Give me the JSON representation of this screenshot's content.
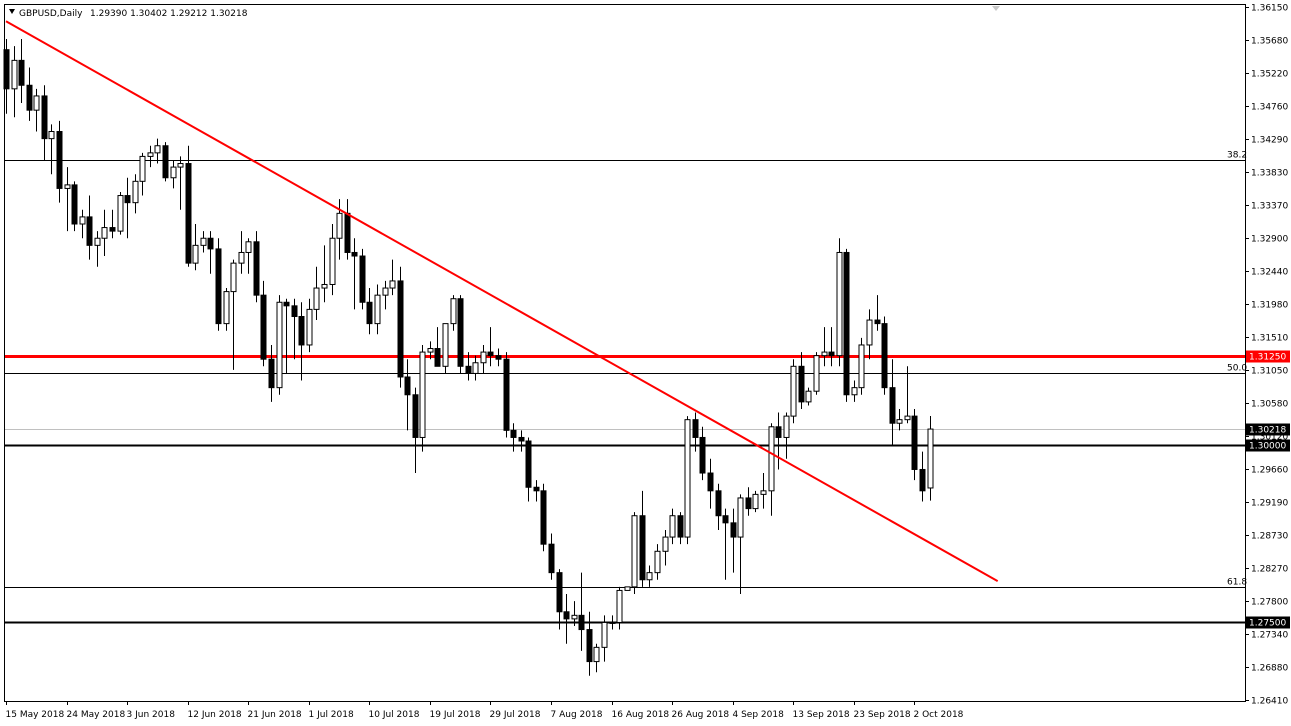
{
  "header": {
    "symbol": "GBPUSD,Daily",
    "ohlc": "1.29390 1.30402 1.29212 1.30218"
  },
  "chart_data": {
    "type": "candlestick",
    "title": "",
    "xlabel": "",
    "ylabel": "",
    "ylim": [
      1.2641,
      1.3615
    ],
    "grid": false,
    "y_ticks": [
      "1.36150",
      "1.35680",
      "1.35220",
      "1.34760",
      "1.34290",
      "1.33830",
      "1.33370",
      "1.32900",
      "1.32440",
      "1.31980",
      "1.31510",
      "1.31050",
      "1.30580",
      "1.30120",
      "1.29660",
      "1.29190",
      "1.28730",
      "1.28270",
      "1.27800",
      "1.27340",
      "1.26880",
      "1.26410"
    ],
    "x_ticks": [
      {
        "label": "15 May 2018",
        "bar": 0
      },
      {
        "label": "24 May 2018",
        "bar": 8
      },
      {
        "label": "3 Jun 2018",
        "bar": 16
      },
      {
        "label": "12 Jun 2018",
        "bar": 24
      },
      {
        "label": "21 Jun 2018",
        "bar": 32
      },
      {
        "label": "1 Jul 2018",
        "bar": 40
      },
      {
        "label": "10 Jul 2018",
        "bar": 48
      },
      {
        "label": "19 Jul 2018",
        "bar": 56
      },
      {
        "label": "29 Jul 2018",
        "bar": 64
      },
      {
        "label": "7 Aug 2018",
        "bar": 72
      },
      {
        "label": "16 Aug 2018",
        "bar": 80
      },
      {
        "label": "26 Aug 2018",
        "bar": 88
      },
      {
        "label": "4 Sep 2018",
        "bar": 96
      },
      {
        "label": "13 Sep 2018",
        "bar": 104
      },
      {
        "label": "23 Sep 2018",
        "bar": 112
      },
      {
        "label": "2 Oct 2018",
        "bar": 120
      }
    ],
    "candles": [
      [
        1.3555,
        1.357,
        1.3465,
        1.35
      ],
      [
        1.35,
        1.356,
        1.346,
        1.354
      ],
      [
        1.354,
        1.357,
        1.348,
        1.3505
      ],
      [
        1.3505,
        1.353,
        1.3455,
        1.347
      ],
      [
        1.347,
        1.35,
        1.344,
        1.349
      ],
      [
        1.349,
        1.3505,
        1.34,
        1.343
      ],
      [
        1.343,
        1.345,
        1.338,
        1.344
      ],
      [
        1.344,
        1.3455,
        1.334,
        1.336
      ],
      [
        1.336,
        1.339,
        1.33,
        1.3365
      ],
      [
        1.3365,
        1.337,
        1.33,
        1.331
      ],
      [
        1.331,
        1.333,
        1.329,
        1.332
      ],
      [
        1.332,
        1.335,
        1.326,
        1.328
      ],
      [
        1.328,
        1.33,
        1.325,
        1.329
      ],
      [
        1.329,
        1.333,
        1.3265,
        1.3305
      ],
      [
        1.3305,
        1.333,
        1.329,
        1.33
      ],
      [
        1.33,
        1.3355,
        1.3295,
        1.335
      ],
      [
        1.335,
        1.3375,
        1.329,
        1.334
      ],
      [
        1.334,
        1.338,
        1.3325,
        1.337
      ],
      [
        1.337,
        1.341,
        1.335,
        1.3405
      ],
      [
        1.3405,
        1.342,
        1.339,
        1.341
      ],
      [
        1.341,
        1.343,
        1.3395,
        1.342
      ],
      [
        1.342,
        1.3425,
        1.337,
        1.3375
      ],
      [
        1.3375,
        1.34,
        1.336,
        1.339
      ],
      [
        1.339,
        1.3405,
        1.333,
        1.3395
      ],
      [
        1.3395,
        1.342,
        1.325,
        1.3255
      ],
      [
        1.3255,
        1.331,
        1.3245,
        1.328
      ],
      [
        1.328,
        1.33,
        1.327,
        1.329
      ],
      [
        1.329,
        1.33,
        1.324,
        1.3275
      ],
      [
        1.3275,
        1.329,
        1.316,
        1.317
      ],
      [
        1.317,
        1.322,
        1.316,
        1.3215
      ],
      [
        1.3215,
        1.326,
        1.3105,
        1.3255
      ],
      [
        1.3255,
        1.33,
        1.324,
        1.327
      ],
      [
        1.327,
        1.329,
        1.324,
        1.3285
      ],
      [
        1.3285,
        1.33,
        1.32,
        1.321
      ],
      [
        1.321,
        1.323,
        1.311,
        1.312
      ],
      [
        1.312,
        1.314,
        1.306,
        1.308
      ],
      [
        1.308,
        1.321,
        1.307,
        1.32
      ],
      [
        1.32,
        1.3205,
        1.31,
        1.3195
      ],
      [
        1.3195,
        1.3205,
        1.312,
        1.318
      ],
      [
        1.318,
        1.32,
        1.309,
        1.314
      ],
      [
        1.314,
        1.3205,
        1.313,
        1.319
      ],
      [
        1.319,
        1.325,
        1.3175,
        1.322
      ],
      [
        1.322,
        1.328,
        1.32,
        1.3225
      ],
      [
        1.3225,
        1.331,
        1.321,
        1.329
      ],
      [
        1.329,
        1.3345,
        1.326,
        1.3325
      ],
      [
        1.3325,
        1.3345,
        1.326,
        1.327
      ],
      [
        1.327,
        1.329,
        1.319,
        1.3265
      ],
      [
        1.3265,
        1.3275,
        1.319,
        1.32
      ],
      [
        1.32,
        1.322,
        1.3155,
        1.317
      ],
      [
        1.317,
        1.3225,
        1.3155,
        1.321
      ],
      [
        1.321,
        1.323,
        1.319,
        1.322
      ],
      [
        1.322,
        1.326,
        1.321,
        1.323
      ],
      [
        1.323,
        1.325,
        1.308,
        1.3095
      ],
      [
        1.3095,
        1.312,
        1.302,
        1.307
      ],
      [
        1.307,
        1.308,
        1.296,
        1.301
      ],
      [
        1.301,
        1.314,
        1.299,
        1.313
      ],
      [
        1.313,
        1.3145,
        1.312,
        1.3135
      ],
      [
        1.3135,
        1.3165,
        1.311,
        1.311
      ],
      [
        1.311,
        1.317,
        1.31,
        1.317
      ],
      [
        1.317,
        1.321,
        1.316,
        1.3205
      ],
      [
        1.3205,
        1.321,
        1.31,
        1.311
      ],
      [
        1.311,
        1.313,
        1.309,
        1.31
      ],
      [
        1.31,
        1.3125,
        1.309,
        1.3115
      ],
      [
        1.3115,
        1.314,
        1.31,
        1.313
      ],
      [
        1.313,
        1.3165,
        1.311,
        1.3125
      ],
      [
        1.3125,
        1.3135,
        1.311,
        1.312
      ],
      [
        1.312,
        1.313,
        1.301,
        1.302
      ],
      [
        1.302,
        1.303,
        1.299,
        1.301
      ],
      [
        1.301,
        1.302,
        1.299,
        1.3005
      ],
      [
        1.3005,
        1.301,
        1.292,
        1.294
      ],
      [
        1.294,
        1.295,
        1.292,
        1.2935
      ],
      [
        1.2935,
        1.2945,
        1.285,
        1.286
      ],
      [
        1.286,
        1.2875,
        1.281,
        1.282
      ],
      [
        1.282,
        1.2825,
        1.274,
        1.2765
      ],
      [
        1.2765,
        1.279,
        1.272,
        1.2755
      ],
      [
        1.2755,
        1.278,
        1.2745,
        1.276
      ],
      [
        1.276,
        1.282,
        1.271,
        1.274
      ],
      [
        1.274,
        1.2765,
        1.2675,
        1.2695
      ],
      [
        1.2695,
        1.272,
        1.268,
        1.2715
      ],
      [
        1.2715,
        1.276,
        1.2695,
        1.275
      ],
      [
        1.275,
        1.276,
        1.274,
        1.275
      ],
      [
        1.275,
        1.28,
        1.274,
        1.2795
      ],
      [
        1.2795,
        1.28,
        1.2795,
        1.28
      ],
      [
        1.28,
        1.2905,
        1.279,
        1.29
      ],
      [
        1.29,
        1.2935,
        1.28,
        1.281
      ],
      [
        1.281,
        1.283,
        1.28,
        1.282
      ],
      [
        1.282,
        1.286,
        1.281,
        1.285
      ],
      [
        1.285,
        1.288,
        1.283,
        1.287
      ],
      [
        1.287,
        1.291,
        1.286,
        1.29
      ],
      [
        1.29,
        1.2905,
        1.286,
        1.287
      ],
      [
        1.287,
        1.304,
        1.286,
        1.3035
      ],
      [
        1.3035,
        1.3045,
        1.299,
        1.301
      ],
      [
        1.301,
        1.3025,
        1.295,
        1.296
      ],
      [
        1.296,
        1.298,
        1.291,
        1.2935
      ],
      [
        1.2935,
        1.2945,
        1.288,
        1.29
      ],
      [
        1.29,
        1.291,
        1.281,
        1.289
      ],
      [
        1.289,
        1.291,
        1.282,
        1.287
      ],
      [
        1.287,
        1.293,
        1.279,
        1.2925
      ],
      [
        1.2925,
        1.294,
        1.29,
        1.291
      ],
      [
        1.291,
        1.2935,
        1.2905,
        1.293
      ],
      [
        1.293,
        1.296,
        1.291,
        1.2935
      ],
      [
        1.2935,
        1.303,
        1.29,
        1.3025
      ],
      [
        1.3025,
        1.3045,
        1.2965,
        1.301
      ],
      [
        1.301,
        1.3045,
        1.298,
        1.304
      ],
      [
        1.304,
        1.312,
        1.303,
        1.311
      ],
      [
        1.311,
        1.313,
        1.305,
        1.306
      ],
      [
        1.306,
        1.308,
        1.3055,
        1.3075
      ],
      [
        1.3075,
        1.313,
        1.307,
        1.3125
      ],
      [
        1.3125,
        1.3165,
        1.311,
        1.313
      ],
      [
        1.313,
        1.3165,
        1.311,
        1.3125
      ],
      [
        1.3125,
        1.329,
        1.311,
        1.327
      ],
      [
        1.327,
        1.3275,
        1.306,
        1.307
      ],
      [
        1.307,
        1.309,
        1.306,
        1.308
      ],
      [
        1.308,
        1.315,
        1.307,
        1.314
      ],
      [
        1.314,
        1.319,
        1.312,
        1.3175
      ],
      [
        1.3175,
        1.321,
        1.316,
        1.317
      ],
      [
        1.317,
        1.318,
        1.307,
        1.308
      ],
      [
        1.308,
        1.312,
        1.3,
        1.303
      ],
      [
        1.303,
        1.305,
        1.302,
        1.3035
      ],
      [
        1.3035,
        1.311,
        1.303,
        1.304
      ],
      [
        1.304,
        1.305,
        1.295,
        1.2965
      ],
      [
        1.2965,
        1.299,
        1.292,
        1.2935
      ],
      [
        1.2939,
        1.30402,
        1.29212,
        1.30218
      ]
    ],
    "horizontal_levels": [
      {
        "value": 1.34,
        "label": "38.2",
        "color": "#000000",
        "style": "thin"
      },
      {
        "value": 1.31,
        "label": "50.0",
        "color": "#000000",
        "style": "thin"
      },
      {
        "value": 1.28,
        "label": "61.8",
        "color": "#000000",
        "style": "thin"
      },
      {
        "value": 1.3125,
        "label": "1.31250",
        "color": "#ff0000",
        "style": "thick-red"
      },
      {
        "value": 1.3,
        "label": "1.30000",
        "color": "#000000",
        "style": "thick"
      },
      {
        "value": 1.275,
        "label": "1.27500",
        "color": "#000000",
        "style": "thick"
      },
      {
        "value": 1.30218,
        "label": "1.30218",
        "color": "#c0c0c0",
        "style": "current"
      }
    ],
    "trendline": {
      "from": {
        "bar": 0,
        "price": 1.3595
      },
      "to": {
        "bar": 131,
        "price": 1.2808
      },
      "color": "#ff0000"
    }
  }
}
